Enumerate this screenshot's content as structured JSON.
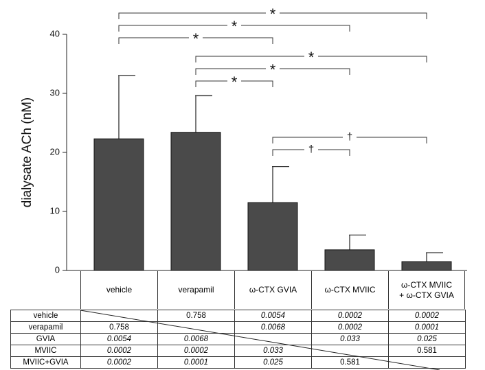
{
  "chart_data": {
    "type": "bar",
    "y_label": "dialysate ACh (nM)",
    "categories": [
      "vehicle",
      "verapamil",
      "ω-CTX GVIA",
      "ω-CTX MVIIC",
      "ω-CTX MVIIC + ω-CTX GVIA"
    ],
    "values": [
      22.3,
      23.4,
      11.5,
      3.5,
      1.5
    ],
    "errors": [
      10.7,
      6.2,
      6.1,
      2.5,
      1.5
    ],
    "color": "#4a4a4a",
    "ylim": [
      0,
      40
    ],
    "yticks": [
      0,
      10,
      20,
      30,
      40
    ],
    "comparisons": [
      {
        "from": 0,
        "to": 4,
        "label": "*"
      },
      {
        "from": 0,
        "to": 3,
        "label": "*"
      },
      {
        "from": 0,
        "to": 2,
        "label": "*"
      },
      {
        "from": 1,
        "to": 4,
        "label": "*"
      },
      {
        "from": 1,
        "to": 3,
        "label": "*"
      },
      {
        "from": 1,
        "to": 2,
        "label": "*"
      },
      {
        "from": 2,
        "to": 4,
        "label": "†"
      },
      {
        "from": 2,
        "to": 3,
        "label": "†"
      }
    ]
  },
  "table": {
    "rows": [
      {
        "label": "vehicle",
        "cells": [
          null,
          {
            "text": "0.758",
            "italic": false
          },
          {
            "text": "0.0054",
            "italic": true
          },
          {
            "text": "0.0002",
            "italic": true
          },
          {
            "text": "0.0002",
            "italic": true
          }
        ]
      },
      {
        "label": "verapamil",
        "cells": [
          {
            "text": "0.758",
            "italic": false
          },
          null,
          {
            "text": "0.0068",
            "italic": true
          },
          {
            "text": "0.0002",
            "italic": true
          },
          {
            "text": "0.0001",
            "italic": true
          }
        ]
      },
      {
        "label": "GVIA",
        "cells": [
          {
            "text": "0.0054",
            "italic": true
          },
          {
            "text": "0.0068",
            "italic": true
          },
          null,
          {
            "text": "0.033",
            "italic": true
          },
          {
            "text": "0.025",
            "italic": true
          }
        ]
      },
      {
        "label": "MVIIC",
        "cells": [
          {
            "text": "0.0002",
            "italic": true
          },
          {
            "text": "0.0002",
            "italic": true
          },
          {
            "text": "0.033",
            "italic": true
          },
          null,
          {
            "text": "0.581",
            "italic": false
          }
        ]
      },
      {
        "label": "MVIIC+GVIA",
        "cells": [
          {
            "text": "0.0002",
            "italic": true
          },
          {
            "text": "0.0001",
            "italic": true
          },
          {
            "text": "0.025",
            "italic": true
          },
          {
            "text": "0.581",
            "italic": false
          },
          null
        ]
      }
    ]
  }
}
